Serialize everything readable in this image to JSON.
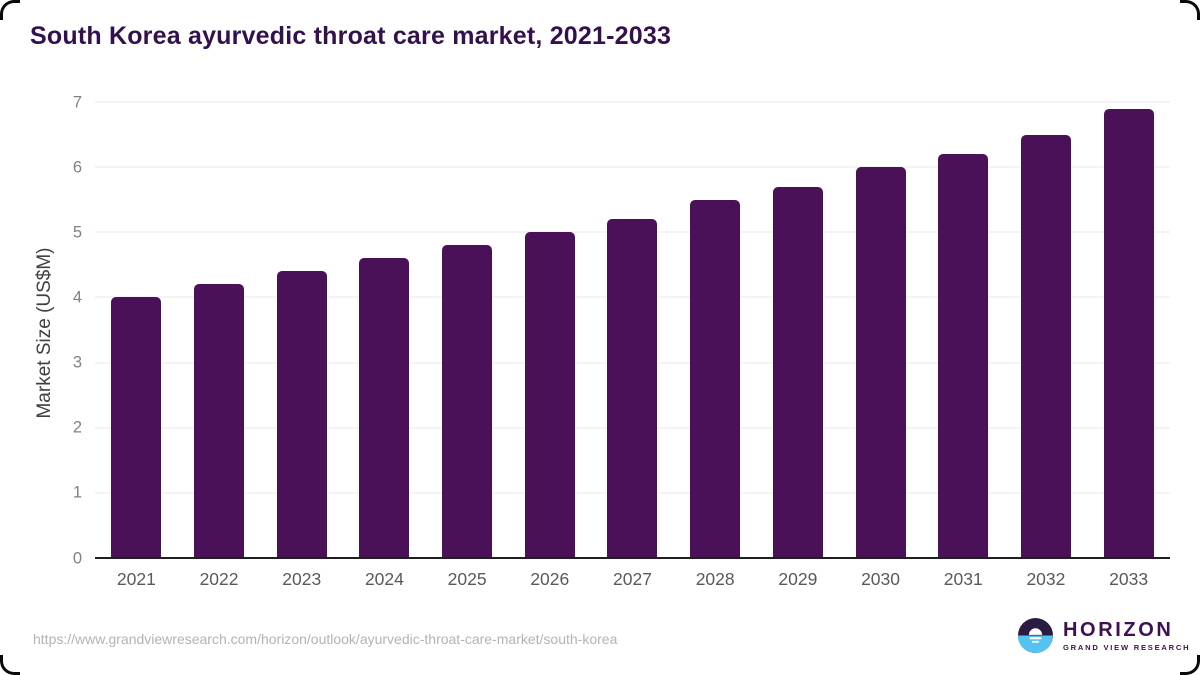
{
  "page": {
    "source_url": "https://www.grandviewresearch.com/horizon/outlook/ayurvedic-throat-care-market/south-korea"
  },
  "logo": {
    "name": "HORIZON",
    "subtitle": "GRAND VIEW RESEARCH"
  },
  "colors": {
    "bar": "#4a1158",
    "title": "#33104e",
    "gridline": "#e8e8e8",
    "axis_line": "#1f1f1f",
    "tick_label": "#828282",
    "x_label": "#595959",
    "y_axis_label": "#404040",
    "url_text": "#b3b3b3",
    "logo_text": "#3d1152",
    "logo_dark": "#2b1b43",
    "logo_blue": "#55c3f1",
    "frame_border": "#0a0a0a"
  },
  "chart_data": {
    "type": "bar",
    "title": "South Korea ayurvedic throat care market, 2021-2033",
    "categories": [
      "2021",
      "2022",
      "2023",
      "2024",
      "2025",
      "2026",
      "2027",
      "2028",
      "2029",
      "2030",
      "2031",
      "2032",
      "2033"
    ],
    "values": [
      4.0,
      4.2,
      4.4,
      4.6,
      4.8,
      5.0,
      5.2,
      5.5,
      5.7,
      6.0,
      6.2,
      6.5,
      6.9
    ],
    "xlabel": "",
    "ylabel": "Market Size (US$M)",
    "ylim": [
      0,
      7
    ],
    "yticks": [
      0,
      1,
      2,
      3,
      4,
      5,
      6,
      7
    ],
    "grid": true,
    "legend": false,
    "bar_color": "#4a1158"
  }
}
